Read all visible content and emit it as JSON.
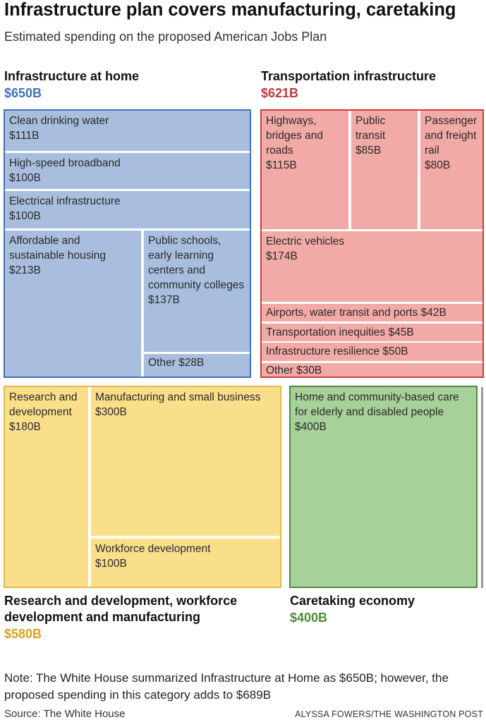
{
  "title": "Infrastructure plan covers manufacturing, caretaking",
  "subtitle": "Estimated spending on the proposed American Jobs Plan",
  "note": "Note: The White House summarized Infrastructure at Home as $650B; however, the proposed spending in this category adds to $689B",
  "source": "Source: The White House",
  "credit": "ALYSSA FOWERS/THE WASHINGTON POST",
  "colors": {
    "home_fill": "#a9bedf",
    "home_border": "#3d73b4",
    "home_total": "#3d73b4",
    "trans_fill": "#f2aaa6",
    "trans_border": "#cc3c3e",
    "trans_total": "#c0393b",
    "rd_fill": "#fadf8a",
    "rd_border": "#e6b848",
    "rd_total": "#d9a21d",
    "care_fill": "#a8d199",
    "care_border": "#4d8a3c",
    "care_total": "#4e8b3a"
  },
  "chart_data": {
    "type": "treemap",
    "title": "Infrastructure plan covers manufacturing, caretaking",
    "subtitle": "Estimated spending on the proposed American Jobs Plan",
    "units": "billions USD",
    "groups": [
      {
        "name": "Infrastructure at home",
        "total_label": "$650B",
        "total": 650,
        "items": [
          {
            "label": "Clean drinking water",
            "value_label": "$111B",
            "value": 111
          },
          {
            "label": "High-speed broadband",
            "value_label": "$100B",
            "value": 100
          },
          {
            "label": "Electrical infrastructure",
            "value_label": "$100B",
            "value": 100
          },
          {
            "label": "Affordable and sustainable housing",
            "value_label": "$213B",
            "value": 213
          },
          {
            "label": "Public schools, early learning centers and community colleges",
            "value_label": "$137B",
            "value": 137
          },
          {
            "label": "Other",
            "value_label": "$28B",
            "value": 28
          }
        ]
      },
      {
        "name": "Transportation infrastructure",
        "total_label": "$621B",
        "total": 621,
        "items": [
          {
            "label": "Highways, bridges and roads",
            "value_label": "$115B",
            "value": 115
          },
          {
            "label": "Public transit",
            "value_label": "$85B",
            "value": 85
          },
          {
            "label": "Passenger and freight rail",
            "value_label": "$80B",
            "value": 80
          },
          {
            "label": "Electric vehicles",
            "value_label": "$174B",
            "value": 174
          },
          {
            "label": "Airports, water transit and ports",
            "value_label": "$42B",
            "value": 42
          },
          {
            "label": "Transportation inequities",
            "value_label": "$45B",
            "value": 45
          },
          {
            "label": "Infrastructure resilience",
            "value_label": "$50B",
            "value": 50
          },
          {
            "label": "Other",
            "value_label": "$30B",
            "value": 30
          }
        ]
      },
      {
        "name": "Research and development, workforce development and manufacturing",
        "total_label": "$580B",
        "total": 580,
        "items": [
          {
            "label": "Research and development",
            "value_label": "$180B",
            "value": 180
          },
          {
            "label": "Manufacturing and small business",
            "value_label": "$300B",
            "value": 300
          },
          {
            "label": "Workforce development",
            "value_label": "$100B",
            "value": 100
          }
        ]
      },
      {
        "name": "Caretaking economy",
        "total_label": "$400B",
        "total": 400,
        "items": [
          {
            "label": "Home and community-based care for elderly and disabled people",
            "value_label": "$400B",
            "value": 400
          }
        ]
      }
    ]
  }
}
